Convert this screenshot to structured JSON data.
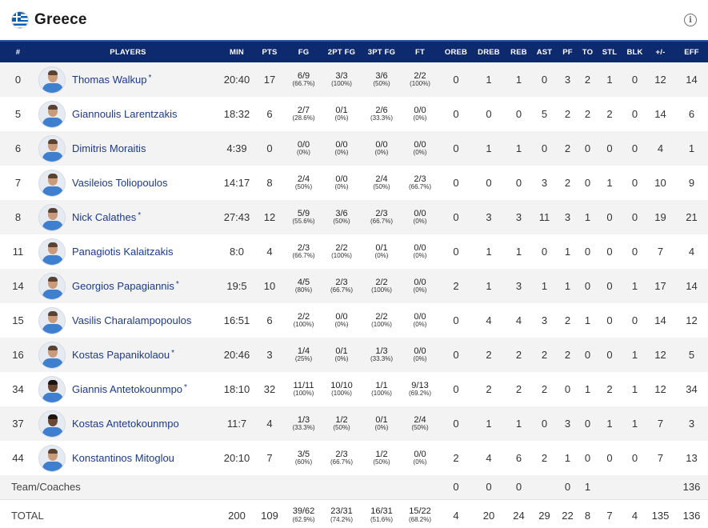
{
  "team": {
    "name": "Greece",
    "flag_icon": "greece-flag-icon",
    "info_icon": "info-icon"
  },
  "columns": [
    "#",
    "PLAYERS",
    "MIN",
    "PTS",
    "FG",
    "2PT FG",
    "3PT FG",
    "FT",
    "OREB",
    "DREB",
    "REB",
    "AST",
    "PF",
    "TO",
    "STL",
    "BLK",
    "+/-",
    "EFF"
  ],
  "players": [
    {
      "num": "0",
      "name": "Thomas Walkup",
      "starter": "*",
      "min": "20:40",
      "pts": "17",
      "fg": "6/9",
      "fg_pct": "(66.7%)",
      "fg2": "3/3",
      "fg2_pct": "(100%)",
      "fg3": "3/6",
      "fg3_pct": "(50%)",
      "ft": "2/2",
      "ft_pct": "(100%)",
      "oreb": "0",
      "dreb": "1",
      "reb": "1",
      "ast": "0",
      "pf": "3",
      "to": "2",
      "stl": "1",
      "blk": "0",
      "pm": "12",
      "eff": "14"
    },
    {
      "num": "5",
      "name": "Giannoulis Larentzakis",
      "starter": "",
      "min": "18:32",
      "pts": "6",
      "fg": "2/7",
      "fg_pct": "(28.6%)",
      "fg2": "0/1",
      "fg2_pct": "(0%)",
      "fg3": "2/6",
      "fg3_pct": "(33.3%)",
      "ft": "0/0",
      "ft_pct": "(0%)",
      "oreb": "0",
      "dreb": "0",
      "reb": "0",
      "ast": "5",
      "pf": "2",
      "to": "2",
      "stl": "2",
      "blk": "0",
      "pm": "14",
      "eff": "6"
    },
    {
      "num": "6",
      "name": "Dimitris Moraitis",
      "starter": "",
      "min": "4:39",
      "pts": "0",
      "fg": "0/0",
      "fg_pct": "(0%)",
      "fg2": "0/0",
      "fg2_pct": "(0%)",
      "fg3": "0/0",
      "fg3_pct": "(0%)",
      "ft": "0/0",
      "ft_pct": "(0%)",
      "oreb": "0",
      "dreb": "1",
      "reb": "1",
      "ast": "0",
      "pf": "2",
      "to": "0",
      "stl": "0",
      "blk": "0",
      "pm": "4",
      "eff": "1"
    },
    {
      "num": "7",
      "name": "Vasileios Toliopoulos",
      "starter": "",
      "min": "14:17",
      "pts": "8",
      "fg": "2/4",
      "fg_pct": "(50%)",
      "fg2": "0/0",
      "fg2_pct": "(0%)",
      "fg3": "2/4",
      "fg3_pct": "(50%)",
      "ft": "2/3",
      "ft_pct": "(66.7%)",
      "oreb": "0",
      "dreb": "0",
      "reb": "0",
      "ast": "3",
      "pf": "2",
      "to": "0",
      "stl": "1",
      "blk": "0",
      "pm": "10",
      "eff": "9"
    },
    {
      "num": "8",
      "name": "Nick Calathes",
      "starter": "*",
      "min": "27:43",
      "pts": "12",
      "fg": "5/9",
      "fg_pct": "(55.6%)",
      "fg2": "3/6",
      "fg2_pct": "(50%)",
      "fg3": "2/3",
      "fg3_pct": "(66.7%)",
      "ft": "0/0",
      "ft_pct": "(0%)",
      "oreb": "0",
      "dreb": "3",
      "reb": "3",
      "ast": "11",
      "pf": "3",
      "to": "1",
      "stl": "0",
      "blk": "0",
      "pm": "19",
      "eff": "21"
    },
    {
      "num": "11",
      "name": "Panagiotis Kalaitzakis",
      "starter": "",
      "min": "8:0",
      "pts": "4",
      "fg": "2/3",
      "fg_pct": "(66.7%)",
      "fg2": "2/2",
      "fg2_pct": "(100%)",
      "fg3": "0/1",
      "fg3_pct": "(0%)",
      "ft": "0/0",
      "ft_pct": "(0%)",
      "oreb": "0",
      "dreb": "1",
      "reb": "1",
      "ast": "0",
      "pf": "1",
      "to": "0",
      "stl": "0",
      "blk": "0",
      "pm": "7",
      "eff": "4"
    },
    {
      "num": "14",
      "name": "Georgios Papagiannis",
      "starter": "*",
      "min": "19:5",
      "pts": "10",
      "fg": "4/5",
      "fg_pct": "(80%)",
      "fg2": "2/3",
      "fg2_pct": "(66.7%)",
      "fg3": "2/2",
      "fg3_pct": "(100%)",
      "ft": "0/0",
      "ft_pct": "(0%)",
      "oreb": "2",
      "dreb": "1",
      "reb": "3",
      "ast": "1",
      "pf": "1",
      "to": "0",
      "stl": "0",
      "blk": "1",
      "pm": "17",
      "eff": "14"
    },
    {
      "num": "15",
      "name": "Vasilis Charalampopoulos",
      "starter": "",
      "min": "16:51",
      "pts": "6",
      "fg": "2/2",
      "fg_pct": "(100%)",
      "fg2": "0/0",
      "fg2_pct": "(0%)",
      "fg3": "2/2",
      "fg3_pct": "(100%)",
      "ft": "0/0",
      "ft_pct": "(0%)",
      "oreb": "0",
      "dreb": "4",
      "reb": "4",
      "ast": "3",
      "pf": "2",
      "to": "1",
      "stl": "0",
      "blk": "0",
      "pm": "14",
      "eff": "12"
    },
    {
      "num": "16",
      "name": "Kostas Papanikolaou",
      "starter": "*",
      "min": "20:46",
      "pts": "3",
      "fg": "1/4",
      "fg_pct": "(25%)",
      "fg2": "0/1",
      "fg2_pct": "(0%)",
      "fg3": "1/3",
      "fg3_pct": "(33.3%)",
      "ft": "0/0",
      "ft_pct": "(0%)",
      "oreb": "0",
      "dreb": "2",
      "reb": "2",
      "ast": "2",
      "pf": "2",
      "to": "0",
      "stl": "0",
      "blk": "1",
      "pm": "12",
      "eff": "5"
    },
    {
      "num": "34",
      "name": "Giannis Antetokounmpo",
      "starter": "*",
      "min": "18:10",
      "pts": "32",
      "fg": "11/11",
      "fg_pct": "(100%)",
      "fg2": "10/10",
      "fg2_pct": "(100%)",
      "fg3": "1/1",
      "fg3_pct": "(100%)",
      "ft": "9/13",
      "ft_pct": "(69.2%)",
      "oreb": "0",
      "dreb": "2",
      "reb": "2",
      "ast": "2",
      "pf": "0",
      "to": "1",
      "stl": "2",
      "blk": "1",
      "pm": "12",
      "eff": "34"
    },
    {
      "num": "37",
      "name": "Kostas Antetokounmpo",
      "starter": "",
      "min": "11:7",
      "pts": "4",
      "fg": "1/3",
      "fg_pct": "(33.3%)",
      "fg2": "1/2",
      "fg2_pct": "(50%)",
      "fg3": "0/1",
      "fg3_pct": "(0%)",
      "ft": "2/4",
      "ft_pct": "(50%)",
      "oreb": "0",
      "dreb": "1",
      "reb": "1",
      "ast": "0",
      "pf": "3",
      "to": "0",
      "stl": "1",
      "blk": "1",
      "pm": "7",
      "eff": "3"
    },
    {
      "num": "44",
      "name": "Konstantinos Mitoglou",
      "starter": "",
      "min": "20:10",
      "pts": "7",
      "fg": "3/5",
      "fg_pct": "(60%)",
      "fg2": "2/3",
      "fg2_pct": "(66.7%)",
      "fg3": "1/2",
      "fg3_pct": "(50%)",
      "ft": "0/0",
      "ft_pct": "(0%)",
      "oreb": "2",
      "dreb": "4",
      "reb": "6",
      "ast": "2",
      "pf": "1",
      "to": "0",
      "stl": "0",
      "blk": "0",
      "pm": "7",
      "eff": "13"
    }
  ],
  "team_row": {
    "label": "Team/Coaches",
    "oreb": "0",
    "dreb": "0",
    "reb": "0",
    "ast": "",
    "pf": "0",
    "to": "1",
    "stl": "",
    "blk": "",
    "pm": "",
    "eff": "136"
  },
  "total_row": {
    "label": "TOTAL",
    "min": "200",
    "pts": "109",
    "fg": "39/62",
    "fg_pct": "(62.9%)",
    "fg2": "23/31",
    "fg2_pct": "(74.2%)",
    "fg3": "16/31",
    "fg3_pct": "(51.6%)",
    "ft": "15/22",
    "ft_pct": "(68.2%)",
    "oreb": "4",
    "dreb": "20",
    "reb": "24",
    "ast": "29",
    "pf": "22",
    "to": "8",
    "stl": "7",
    "blk": "4",
    "pm": "135",
    "eff": "136"
  }
}
